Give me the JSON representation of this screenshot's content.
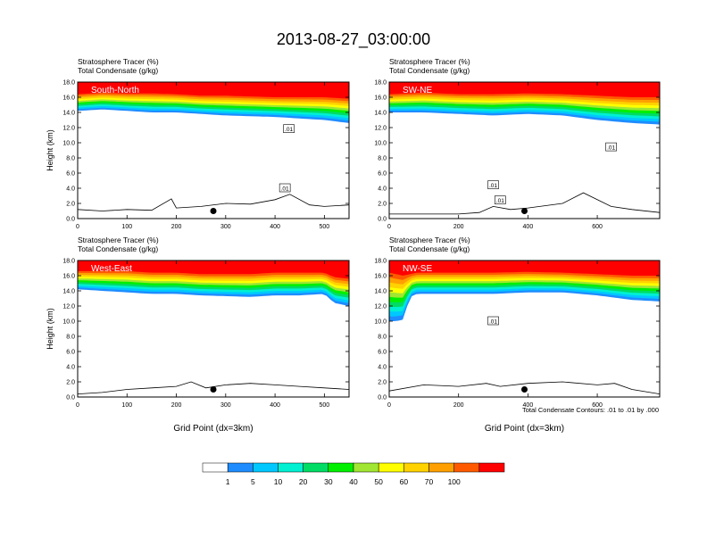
{
  "figure": {
    "title": "2013-08-27_03:00:00",
    "footnote": "Total Condensate Contours: .01 to .01 by .000"
  },
  "colors": {
    "background": "#ffffff",
    "contour": "#000000",
    "scale": [
      "#ffffff",
      "#1e8cff",
      "#00c8ff",
      "#00f0d2",
      "#00dc64",
      "#00f000",
      "#a0e632",
      "#ffff00",
      "#ffd200",
      "#ffa000",
      "#ff5a00",
      "#ff0000"
    ]
  },
  "colorbar": {
    "labels": [
      "1",
      "5",
      "10",
      "20",
      "30",
      "40",
      "50",
      "60",
      "70",
      "100"
    ]
  },
  "chart_data": [
    {
      "type": "heatmap",
      "panel_label": "South-North",
      "title_line1": "Stratosphere Tracer   (%)",
      "title_line2": "Total Condensate   (g/kg)",
      "ylabel": "Height (km)",
      "xlabel": "",
      "xlim": [
        0,
        550
      ],
      "ylim": [
        0,
        18
      ],
      "xticks": [
        "0",
        "100",
        "200",
        "300",
        "400",
        "500"
      ],
      "yticks": [
        "0.0",
        "2.0",
        "4.0",
        "6.0",
        "8.0",
        "10.0",
        "12.0",
        "14.0",
        "16.0",
        "18.0"
      ],
      "tracer_profile": {
        "x": [
          0,
          50,
          100,
          150,
          200,
          250,
          300,
          350,
          400,
          450,
          500,
          550
        ],
        "base_km": [
          14.2,
          14.4,
          14.2,
          14.0,
          14.0,
          13.8,
          13.6,
          13.5,
          13.4,
          13.2,
          13.0,
          12.6
        ],
        "top_km": [
          16.4,
          16.6,
          16.5,
          16.5,
          16.4,
          16.2,
          16.2,
          16.1,
          16.0,
          16.0,
          16.0,
          15.8
        ]
      },
      "terrain": {
        "x": [
          0,
          50,
          100,
          150,
          190,
          200,
          250,
          300,
          350,
          400,
          430,
          470,
          500,
          550
        ],
        "height_km": [
          1.2,
          1.0,
          1.2,
          1.1,
          2.6,
          1.4,
          1.6,
          2.0,
          1.9,
          2.5,
          3.2,
          1.8,
          1.6,
          1.8
        ]
      },
      "marker": {
        "x": 275,
        "height_km": 1.0
      },
      "contour_labels": [
        {
          "text": ".01",
          "x": 428,
          "height_km": 11.8
        },
        {
          "text": ".01",
          "x": 420,
          "height_km": 4.0
        }
      ]
    },
    {
      "type": "heatmap",
      "panel_label": "SW-NE",
      "title_line1": "Stratosphere Tracer   (%)",
      "title_line2": "Total Condensate   (g/kg)",
      "ylabel": "",
      "xlabel": "",
      "xlim": [
        0,
        780
      ],
      "ylim": [
        0,
        18
      ],
      "xticks": [
        "0",
        "200",
        "400",
        "600"
      ],
      "yticks": [
        "0.0",
        "2.0",
        "4.0",
        "6.0",
        "8.0",
        "10.0",
        "12.0",
        "14.0",
        "16.0",
        "18.0"
      ],
      "tracer_profile": {
        "x": [
          0,
          100,
          200,
          300,
          400,
          500,
          600,
          700,
          780
        ],
        "base_km": [
          14.0,
          14.0,
          13.8,
          13.6,
          13.8,
          13.6,
          13.0,
          12.6,
          12.4
        ],
        "top_km": [
          16.4,
          16.6,
          16.4,
          16.4,
          16.5,
          16.4,
          16.2,
          16.0,
          16.0
        ]
      },
      "terrain": {
        "x": [
          0,
          100,
          200,
          260,
          300,
          350,
          400,
          500,
          560,
          640,
          700,
          780
        ],
        "height_km": [
          0.6,
          0.6,
          0.6,
          0.8,
          1.6,
          1.2,
          1.4,
          2.0,
          3.4,
          1.6,
          1.2,
          0.8
        ]
      },
      "marker": {
        "x": 390,
        "height_km": 1.0
      },
      "contour_labels": [
        {
          "text": ".01",
          "x": 300,
          "height_km": 4.4
        },
        {
          "text": ".01",
          "x": 320,
          "height_km": 2.4
        },
        {
          "text": ".01",
          "x": 640,
          "height_km": 9.4
        }
      ]
    },
    {
      "type": "heatmap",
      "panel_label": "West-East",
      "title_line1": "Stratosphere Tracer   (%)",
      "title_line2": "Total Condensate   (g/kg)",
      "ylabel": "Height (km)",
      "xlabel": "Grid Point (dx=3km)",
      "xlim": [
        0,
        550
      ],
      "ylim": [
        0,
        18
      ],
      "xticks": [
        "0",
        "100",
        "200",
        "300",
        "400",
        "500"
      ],
      "yticks": [
        "0.0",
        "2.0",
        "4.0",
        "6.0",
        "8.0",
        "10.0",
        "12.0",
        "14.0",
        "16.0",
        "18.0"
      ],
      "tracer_profile": {
        "x": [
          0,
          50,
          100,
          150,
          200,
          250,
          300,
          350,
          400,
          450,
          500,
          520,
          550
        ],
        "base_km": [
          14.2,
          14.0,
          13.8,
          13.6,
          13.6,
          13.4,
          13.3,
          13.2,
          13.4,
          13.4,
          13.6,
          12.4,
          12.0
        ],
        "top_km": [
          16.6,
          16.6,
          16.6,
          16.4,
          16.4,
          16.2,
          16.2,
          16.2,
          16.4,
          16.4,
          16.4,
          15.8,
          15.6
        ]
      },
      "terrain": {
        "x": [
          0,
          50,
          100,
          150,
          200,
          230,
          260,
          300,
          350,
          400,
          450,
          500,
          550
        ],
        "height_km": [
          0.4,
          0.6,
          1.0,
          1.2,
          1.4,
          2.0,
          1.2,
          1.6,
          1.8,
          1.6,
          1.4,
          1.2,
          1.0
        ]
      },
      "marker": {
        "x": 275,
        "height_km": 1.0
      },
      "contour_labels": []
    },
    {
      "type": "heatmap",
      "panel_label": "NW-SE",
      "title_line1": "Stratosphere Tracer   (%)",
      "title_line2": "Total Condensate   (g/kg)",
      "ylabel": "",
      "xlabel": "Grid Point (dx=3km)",
      "xlim": [
        0,
        780
      ],
      "ylim": [
        0,
        18
      ],
      "xticks": [
        "0",
        "200",
        "400",
        "600"
      ],
      "yticks": [
        "0.0",
        "2.0",
        "4.0",
        "6.0",
        "8.0",
        "10.0",
        "12.0",
        "14.0",
        "16.0",
        "18.0"
      ],
      "tracer_profile": {
        "x": [
          0,
          20,
          40,
          60,
          80,
          150,
          200,
          300,
          400,
          500,
          600,
          700,
          780
        ],
        "base_km": [
          10.0,
          10.0,
          10.2,
          13.2,
          13.6,
          13.6,
          13.6,
          13.6,
          13.8,
          13.8,
          13.4,
          12.8,
          12.6
        ],
        "top_km": [
          16.4,
          16.2,
          16.0,
          16.2,
          16.4,
          16.4,
          16.4,
          16.4,
          16.5,
          16.4,
          16.2,
          16.0,
          16.0
        ]
      },
      "terrain": {
        "x": [
          0,
          100,
          200,
          280,
          320,
          400,
          500,
          600,
          650,
          700,
          780
        ],
        "height_km": [
          0.8,
          1.6,
          1.4,
          1.8,
          1.4,
          1.8,
          2.0,
          1.6,
          1.8,
          1.0,
          0.4
        ]
      },
      "marker": {
        "x": 390,
        "height_km": 1.0
      },
      "contour_labels": [
        {
          "text": ".01",
          "x": 300,
          "height_km": 10.0
        }
      ]
    }
  ]
}
